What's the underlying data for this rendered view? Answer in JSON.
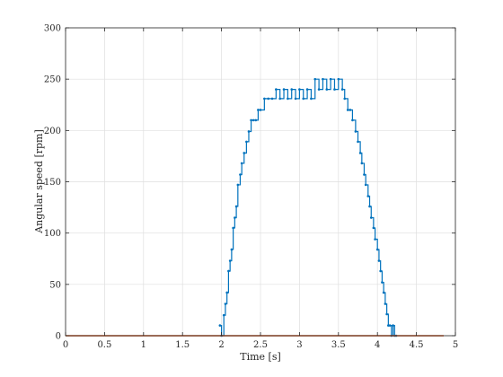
{
  "chart_data": {
    "type": "line",
    "title": "",
    "xlabel": "Time [s]",
    "ylabel": "Angular speed [rpm]",
    "xlim": [
      0,
      5
    ],
    "ylim": [
      0,
      300
    ],
    "xticks": [
      0,
      0.5,
      1,
      1.5,
      2,
      2.5,
      3,
      3.5,
      4,
      4.5,
      5
    ],
    "xtick_labels": [
      "0",
      "0.5",
      "1",
      "1.5",
      "2",
      "2.5",
      "3",
      "3.5",
      "4",
      "4.5",
      "5"
    ],
    "yticks": [
      0,
      50,
      100,
      150,
      200,
      250,
      300
    ],
    "ytick_labels": [
      "0",
      "50",
      "100",
      "150",
      "200",
      "250",
      "300"
    ],
    "grid": true,
    "legend": "none",
    "series": [
      {
        "color": "#0072BD",
        "marker": "dot",
        "x": [
          1.98,
          2.0,
          2.03,
          2.05,
          2.07,
          2.09,
          2.11,
          2.13,
          2.15,
          2.17,
          2.19,
          2.21,
          2.24,
          2.26,
          2.29,
          2.32,
          2.35,
          2.38,
          2.41,
          2.44,
          2.47,
          2.5,
          2.55,
          2.6,
          2.65,
          2.7,
          2.75,
          2.8,
          2.85,
          2.9,
          2.95,
          3.0,
          3.05,
          3.1,
          3.15,
          3.2,
          3.25,
          3.3,
          3.35,
          3.4,
          3.45,
          3.5,
          3.55,
          3.58,
          3.62,
          3.65,
          3.68,
          3.72,
          3.75,
          3.78,
          3.8,
          3.83,
          3.85,
          3.88,
          3.9,
          3.92,
          3.95,
          3.97,
          4.0,
          4.02,
          4.04,
          4.06,
          4.08,
          4.1,
          4.12,
          4.14,
          4.16,
          4.18,
          4.2,
          4.22,
          4.24
        ],
        "y": [
          10,
          0,
          20,
          31,
          42,
          63,
          73,
          84,
          105,
          115,
          126,
          147,
          157,
          168,
          178,
          189,
          199,
          210,
          210,
          210,
          220,
          220,
          231,
          231,
          231,
          240,
          231,
          240,
          231,
          240,
          231,
          240,
          231,
          240,
          231,
          250,
          240,
          250,
          240,
          250,
          240,
          250,
          240,
          231,
          220,
          220,
          210,
          199,
          189,
          178,
          168,
          157,
          147,
          136,
          126,
          115,
          105,
          94,
          84,
          73,
          63,
          52,
          42,
          31,
          21,
          10,
          10,
          0,
          10,
          0,
          0
        ]
      },
      {
        "color": "#D95319",
        "marker": "none",
        "x": [
          0,
          4.85
        ],
        "y": [
          0,
          0
        ]
      }
    ]
  }
}
